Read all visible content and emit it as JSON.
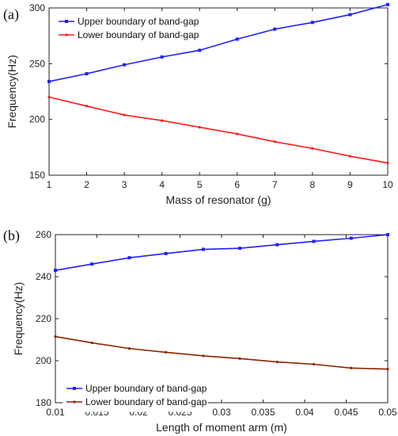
{
  "chart_data": [
    {
      "type": "line",
      "panel_label": "(a)",
      "xlabel": "Mass of resonator (g)",
      "ylabel": "Frequency(Hz)",
      "xlim": [
        1,
        10
      ],
      "ylim": [
        150,
        300
      ],
      "xticks": [
        "1",
        "2",
        "3",
        "4",
        "5",
        "6",
        "7",
        "8",
        "9",
        "10"
      ],
      "yticks": [
        "150",
        "200",
        "250",
        "300"
      ],
      "grid": false,
      "legend_position": "top-left",
      "x": [
        1,
        2,
        3,
        4,
        5,
        6,
        7,
        8,
        9,
        10
      ],
      "series": [
        {
          "name": "Upper boundary of  band-gap",
          "color": "#2020ff",
          "marker": "square",
          "values": [
            234,
            241,
            249,
            256,
            262,
            272,
            281,
            287,
            294,
            303
          ]
        },
        {
          "name": "Lower boundary of band-gap",
          "color": "#ff1a1a",
          "marker": "dot",
          "values": [
            220,
            212,
            204,
            199,
            193,
            187,
            180,
            174,
            167,
            161
          ]
        }
      ]
    },
    {
      "type": "line",
      "panel_label": "(b)",
      "xlabel": "Length of moment arm (m)",
      "ylabel": "Frequency(Hz)",
      "xlim": [
        0.01,
        0.05
      ],
      "ylim": [
        180,
        260
      ],
      "xticks": [
        "0.01",
        "0.015",
        "0.02",
        "0.025",
        "0.03",
        "0.035",
        "0.04",
        "0.045",
        "0.05"
      ],
      "yticks": [
        "180",
        "200",
        "220",
        "240",
        "260"
      ],
      "grid": false,
      "legend_position": "bottom-left",
      "x": [
        0.01,
        0.0144,
        0.0189,
        0.0233,
        0.0278,
        0.0322,
        0.0367,
        0.0411,
        0.0456,
        0.05
      ],
      "series": [
        {
          "name": "Upper boundary of band-gap",
          "color": "#2020ff",
          "marker": "square",
          "values": [
            243,
            246,
            249,
            251,
            253,
            253.5,
            255.2,
            256.8,
            258.3,
            260
          ]
        },
        {
          "name": "Lower boundary of band-gap",
          "color": "#8b2500",
          "marker": "dot",
          "values": [
            211.5,
            208.5,
            205.8,
            204,
            202.3,
            201,
            199.4,
            198.3,
            196.5,
            196
          ]
        }
      ]
    }
  ]
}
